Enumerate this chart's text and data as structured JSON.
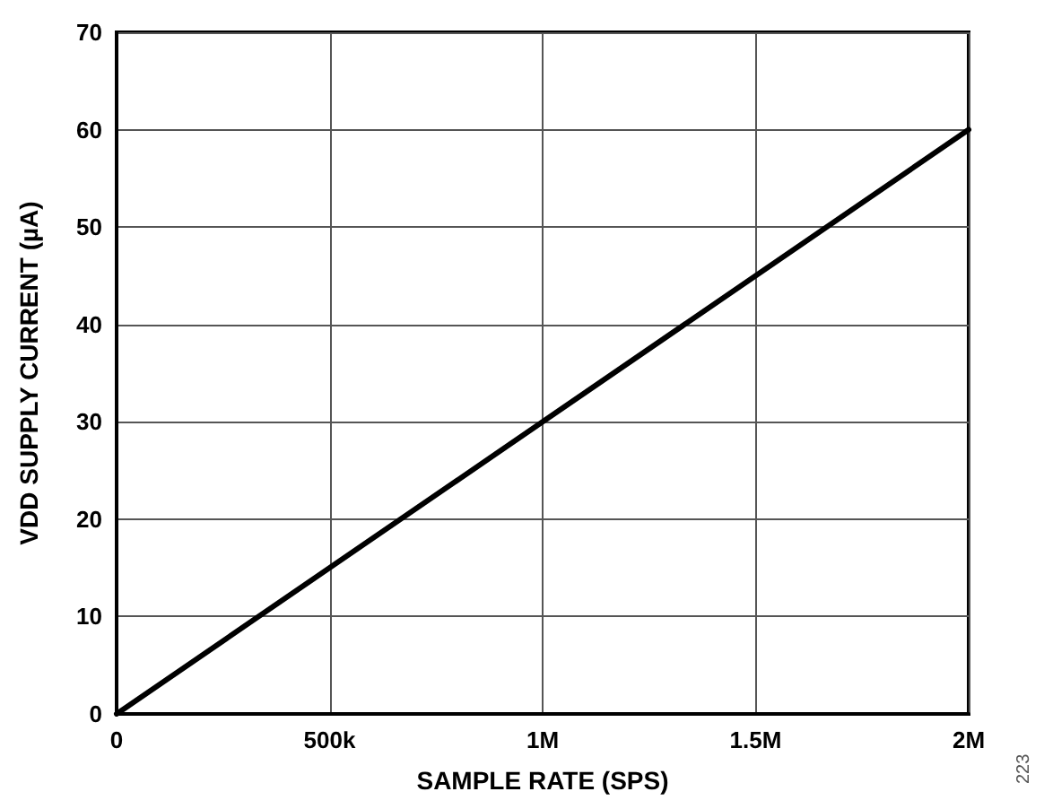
{
  "chart_data": {
    "type": "line",
    "xlabel": "SAMPLE RATE (SPS)",
    "ylabel": "VDD SUPPLY CURRENT (µA)",
    "x": [
      0,
      1000000,
      2000000
    ],
    "series": [
      {
        "color": "#000000",
        "values": [
          0,
          30,
          60
        ]
      }
    ],
    "xlim": [
      0,
      2000000
    ],
    "xticks": [
      0,
      {
        "value": 500000,
        "label": "500k"
      },
      {
        "value": 1000000,
        "label": "1M"
      },
      {
        "value": 1500000,
        "label": "1.5M"
      },
      {
        "value": 2000000,
        "label": "2M"
      }
    ],
    "ylim": [
      0,
      70
    ],
    "yticks": [
      0,
      10,
      20,
      30,
      40,
      50,
      60,
      70
    ],
    "grid": true,
    "marker": "none",
    "line_style": "solid",
    "annotations": [
      "223"
    ]
  }
}
